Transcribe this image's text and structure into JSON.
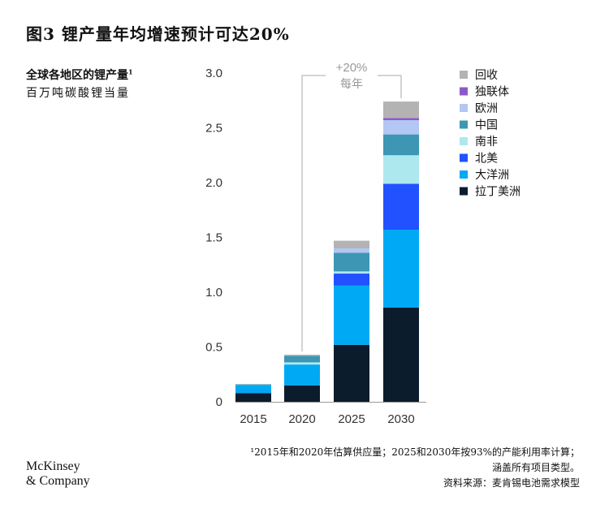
{
  "title": "图3 锂产量年均增速预计可达20%",
  "subtitle": {
    "text": "全球各地区的锂产量",
    "sup": "1"
  },
  "unit": "百万吨碳酸锂当量",
  "annotation": {
    "rate": "+20%",
    "label": "每年"
  },
  "chart_data": {
    "type": "bar",
    "stacked": true,
    "categories": [
      "2015",
      "2020",
      "2025",
      "2030"
    ],
    "ylim": [
      0,
      3.0
    ],
    "yticks": [
      "0",
      "0.5",
      "1.0",
      "1.5",
      "2.0",
      "2.5",
      "3.0"
    ],
    "ytick_values": [
      0,
      0.5,
      1.0,
      1.5,
      2.0,
      2.5,
      3.0
    ],
    "series": [
      {
        "name": "拉丁美洲",
        "color": "#0b1c2c",
        "values": [
          0.08,
          0.15,
          0.52,
          0.86
        ]
      },
      {
        "name": "大洋洲",
        "color": "#00a9f4",
        "values": [
          0.07,
          0.19,
          0.54,
          0.71
        ]
      },
      {
        "name": "北美",
        "color": "#2251ff",
        "values": [
          0.0,
          0.0,
          0.11,
          0.42
        ]
      },
      {
        "name": "南非",
        "color": "#aee8ef",
        "values": [
          0.0,
          0.02,
          0.02,
          0.26
        ]
      },
      {
        "name": "中国",
        "color": "#3c96b4",
        "values": [
          0.01,
          0.06,
          0.17,
          0.19
        ]
      },
      {
        "name": "欧洲",
        "color": "#b3c7f5",
        "values": [
          0.0,
          0.0,
          0.04,
          0.13
        ]
      },
      {
        "name": "独联体",
        "color": "#8c5ac8",
        "values": [
          0.0,
          0.0,
          0.0,
          0.02
        ]
      },
      {
        "name": "回收",
        "color": "#b3b3b3",
        "values": [
          0.0,
          0.01,
          0.07,
          0.15
        ]
      }
    ],
    "legend_position": "top-right"
  },
  "footnote": [
    "¹2015年和2020年估算供应量；2025和2030年按93%的产能利用率计算；",
    "涵盖所有项目类型。",
    "资料来源：麦肯锡电池需求模型"
  ],
  "logo": [
    "McKinsey",
    "& Company"
  ]
}
